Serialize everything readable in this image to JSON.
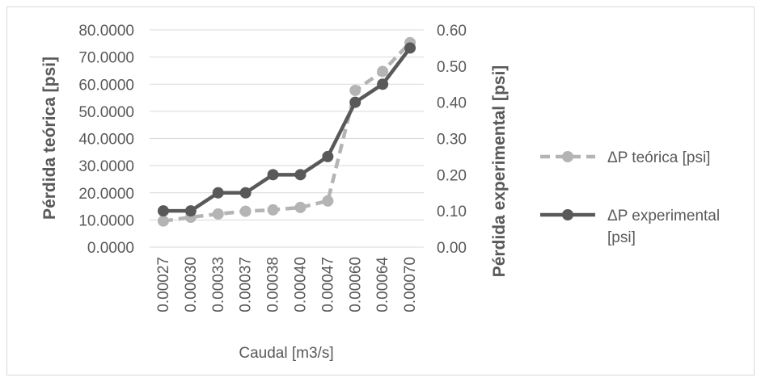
{
  "chart_data": {
    "type": "line",
    "title": "",
    "xlabel": "Caudal [m3/s]",
    "ylabel": "Pérdida teórica [psi]",
    "y2label": "Pérdida experimental [psi]",
    "categories": [
      "0.00027",
      "0.00030",
      "0.00033",
      "0.00037",
      "0.00038",
      "0.00040",
      "0.00047",
      "0.00060",
      "0.00064",
      "0.00070"
    ],
    "ylim": [
      0,
      80
    ],
    "y2lim": [
      0,
      0.6
    ],
    "yticks": [
      "0.0000",
      "10.0000",
      "20.0000",
      "30.0000",
      "40.0000",
      "50.0000",
      "60.0000",
      "70.0000",
      "80.0000"
    ],
    "y2ticks": [
      "0.00",
      "0.10",
      "0.20",
      "0.30",
      "0.40",
      "0.50",
      "0.60"
    ],
    "grid": true,
    "legend_position": "right",
    "series": [
      {
        "name": "ΔP teórica [psi]",
        "axis": "left",
        "style": "dashed",
        "color": "#b4b4b4",
        "values": [
          9.6,
          11.0,
          12.2,
          13.2,
          13.7,
          14.6,
          17.0,
          57.7,
          64.7,
          75.3
        ]
      },
      {
        "name": "ΔP experimental [psi]",
        "axis": "right",
        "style": "solid",
        "color": "#595959",
        "values": [
          0.1,
          0.1,
          0.15,
          0.15,
          0.2,
          0.2,
          0.25,
          0.4,
          0.45,
          0.55
        ]
      }
    ]
  }
}
